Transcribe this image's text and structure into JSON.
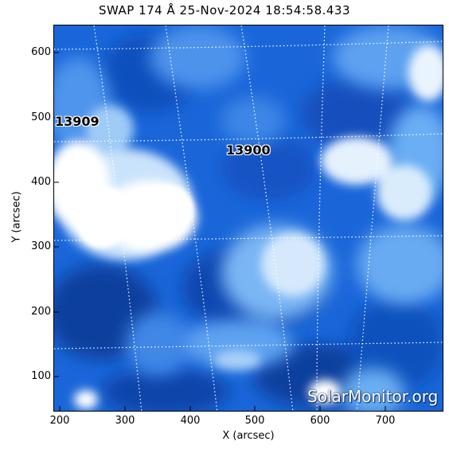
{
  "title": "SWAP 174 Å 25-Nov-2024 18:54:58.433",
  "axes": {
    "xlabel": "X (arcsec)",
    "ylabel": "Y (arcsec)",
    "xticks": [
      "200",
      "300",
      "400",
      "500",
      "600",
      "700"
    ],
    "yticks": [
      "600",
      "500",
      "400",
      "300",
      "200",
      "100"
    ],
    "xlim": [
      192,
      792
    ],
    "ylim": [
      45,
      645
    ]
  },
  "regions": [
    {
      "label": "13909"
    },
    {
      "label": "13900"
    }
  ],
  "watermark": "SolarMonitor.org",
  "colors": {
    "deep": "#0d3f9e",
    "mid": "#1a66d9",
    "bright": "#6aaef3",
    "glow": "#ffffff"
  }
}
